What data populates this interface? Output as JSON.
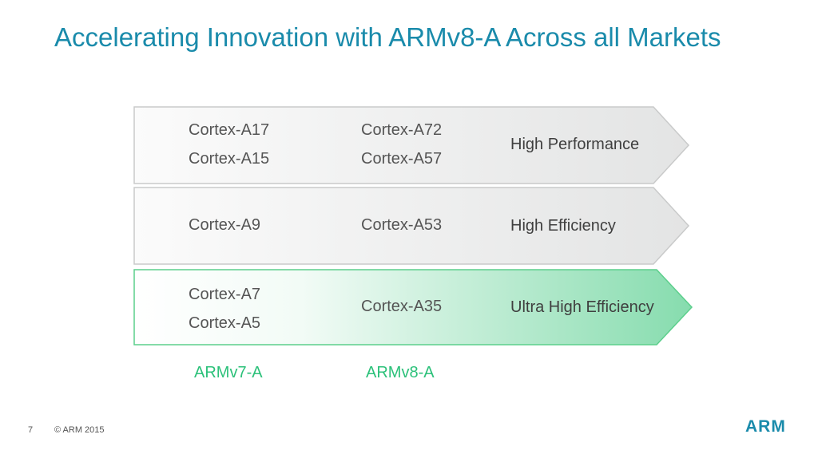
{
  "slide": {
    "title": "Accelerating Innovation with ARMv8-A Across all Markets",
    "rows": [
      {
        "v7": [
          "Cortex-A17",
          "Cortex-A15"
        ],
        "v8": [
          "Cortex-A72",
          "Cortex-A57"
        ],
        "tier": "High Performance"
      },
      {
        "v7": [
          "Cortex-A9"
        ],
        "v8": [
          "Cortex-A53"
        ],
        "tier": "High Efficiency"
      },
      {
        "v7": [
          "Cortex-A7",
          "Cortex-A5"
        ],
        "v8": [
          "Cortex-A35"
        ],
        "tier": "Ultra High Efficiency"
      }
    ],
    "columns": {
      "v7": "ARMv7-A",
      "v8": "ARMv8-A"
    },
    "footer": {
      "page": "7",
      "copyright": "© ARM 2015"
    },
    "logo": "ARM",
    "colors": {
      "title": "#1a8bab",
      "highlight": "#2cc17a",
      "band_gray": "#e6e7e7"
    }
  }
}
